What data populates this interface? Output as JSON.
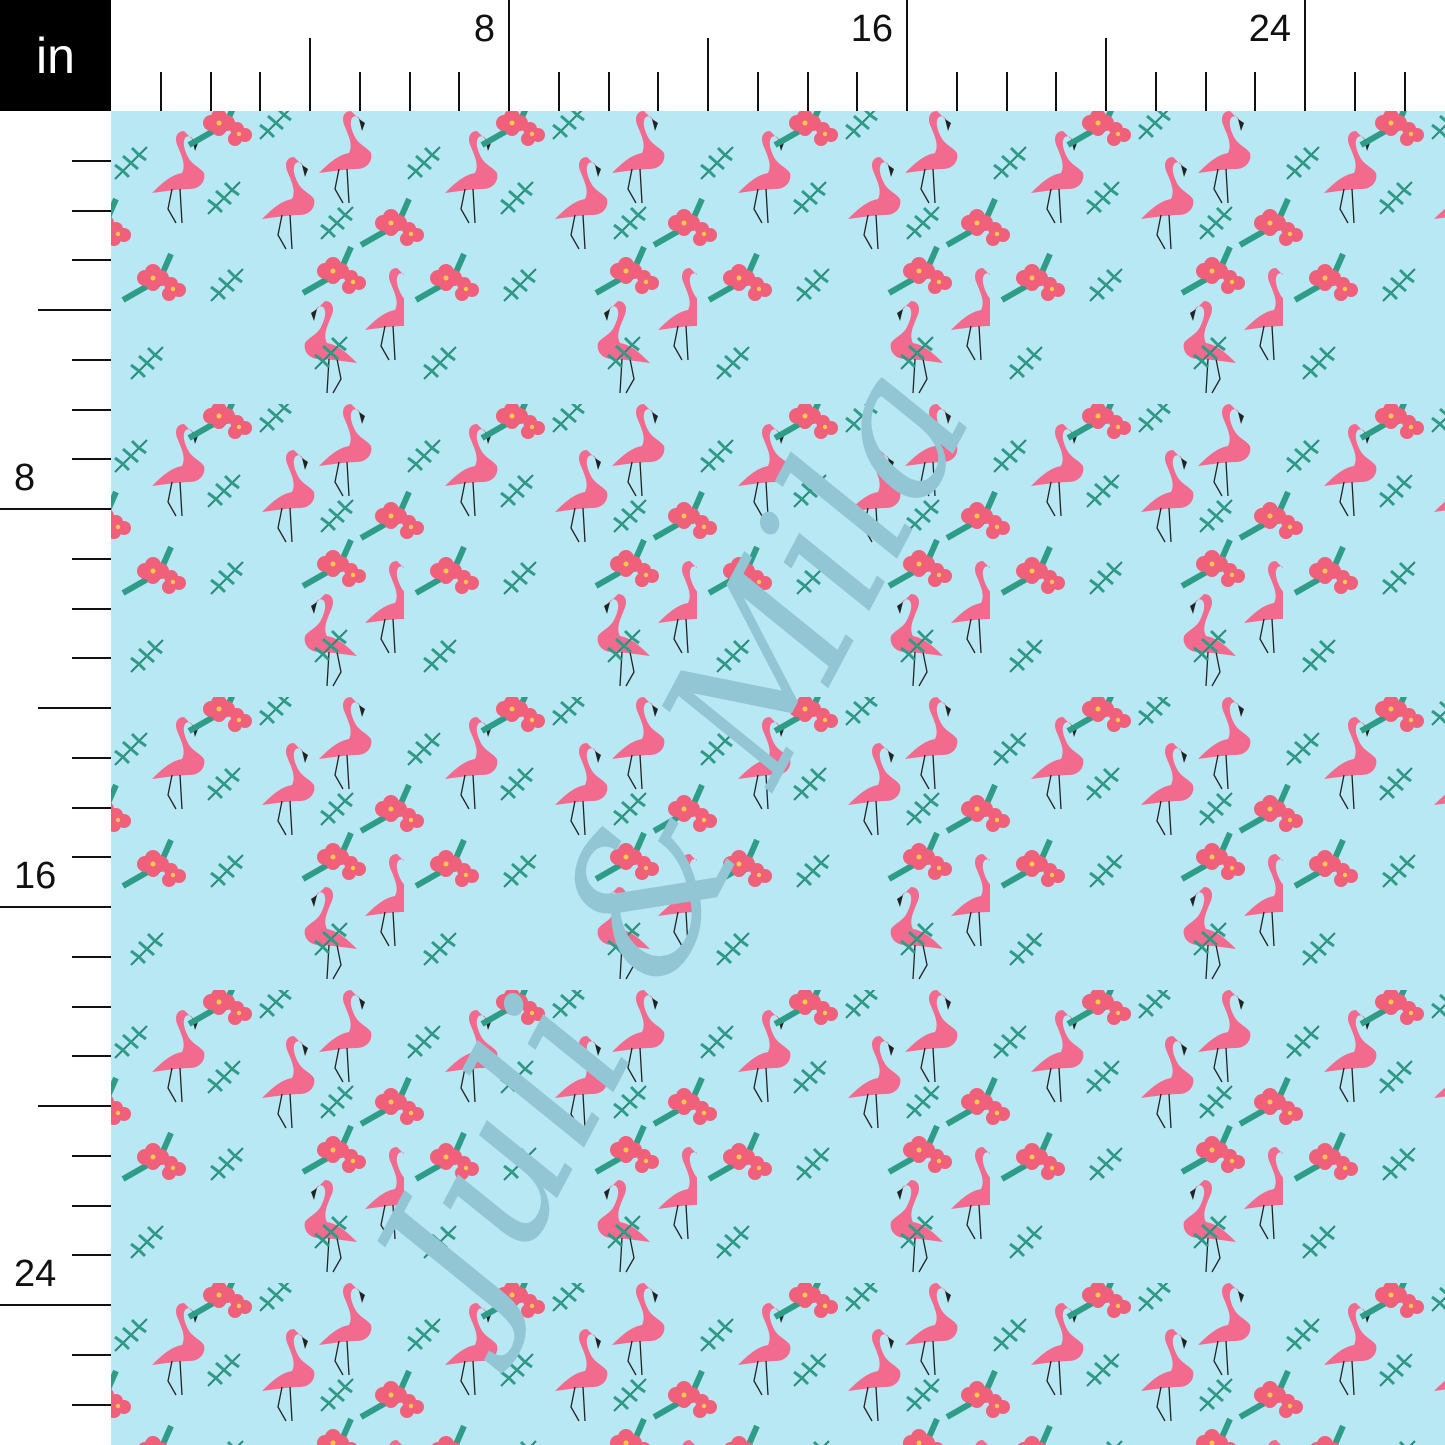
{
  "unit_label": "in",
  "top_ruler": {
    "labels": [
      "8",
      "16",
      "24"
    ]
  },
  "left_ruler": {
    "labels": [
      "8",
      "16",
      "24"
    ]
  },
  "pattern": {
    "background": "#b9e8f5",
    "flamingo_color": "#f26b8f",
    "flower_color": "#f0607a",
    "leaf_color": "#2e9c86"
  },
  "watermark": "Juli & Mila"
}
